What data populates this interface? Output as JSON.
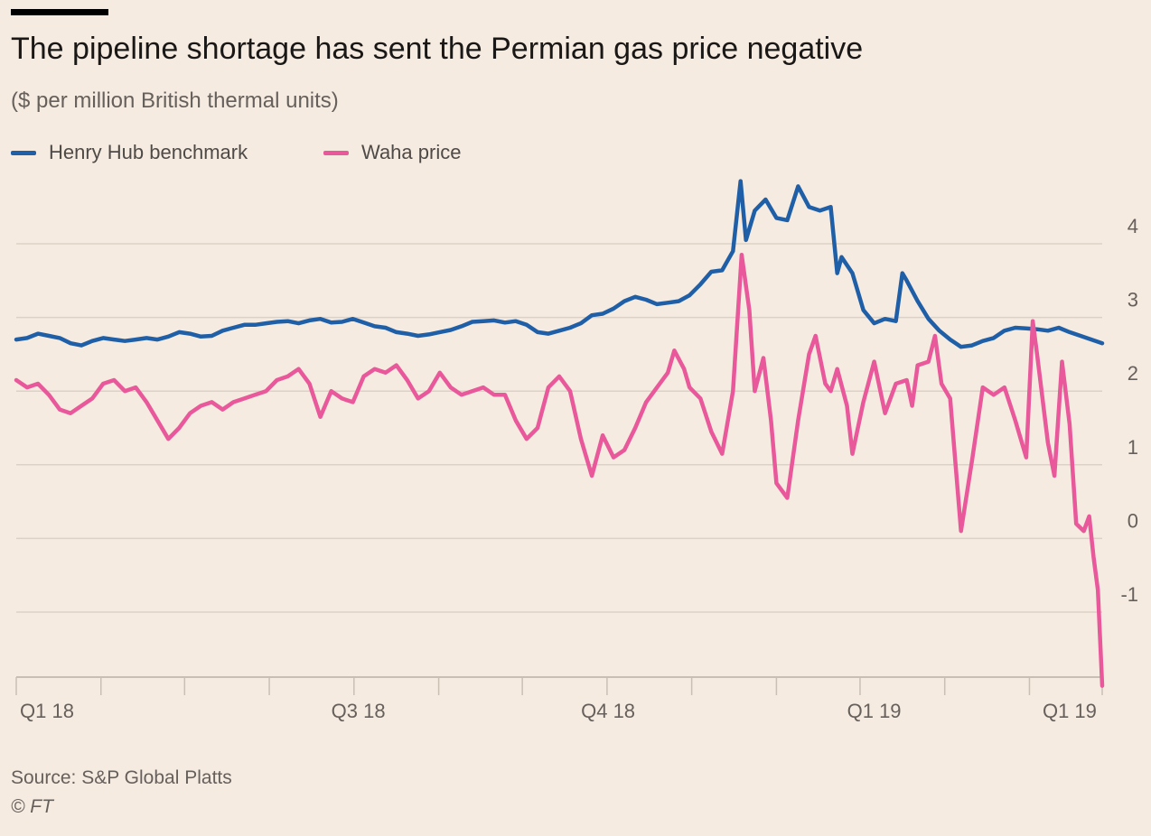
{
  "title": "The pipeline shortage has sent the Permian gas price negative",
  "subtitle": "($ per million British thermal units)",
  "source": "Source: S&P Global Platts",
  "credit": "© FT",
  "colors": {
    "henry": "#1f5fa8",
    "waha": "#e8589a",
    "grid": "#dcd1c6",
    "tick": "#66605c"
  },
  "chart_data": {
    "type": "line",
    "title": "The pipeline shortage has sent the Permian gas price negative",
    "ylabel": "($ per million British thermal units)",
    "xlabel": "",
    "ylim": [
      -2,
      5
    ],
    "yticks": [
      4,
      3,
      2,
      1,
      0,
      -1
    ],
    "xlim": [
      0,
      100
    ],
    "xtick_labels": [
      {
        "x": 0,
        "label": "Q1 18"
      },
      {
        "x": 31.5,
        "label": "Q3 18"
      },
      {
        "x": 54.5,
        "label": "Q4 18"
      },
      {
        "x": 79,
        "label": "Q1 19"
      },
      {
        "x": 97,
        "label": "Q1 19"
      }
    ],
    "minor_ticks": [
      0,
      7.8,
      15.5,
      23.3,
      31.1,
      38.9,
      46.6,
      54.4,
      62.2,
      70,
      77.7,
      85.5,
      93.3,
      100
    ],
    "legend_position": "top-left",
    "series": [
      {
        "name": "Henry Hub benchmark",
        "color": "#1f5fa8",
        "points": [
          [
            0,
            2.7
          ],
          [
            1,
            2.72
          ],
          [
            2,
            2.78
          ],
          [
            3,
            2.75
          ],
          [
            4,
            2.72
          ],
          [
            5,
            2.65
          ],
          [
            6,
            2.62
          ],
          [
            7,
            2.68
          ],
          [
            8,
            2.72
          ],
          [
            9,
            2.7
          ],
          [
            10,
            2.68
          ],
          [
            11,
            2.7
          ],
          [
            12,
            2.72
          ],
          [
            13,
            2.7
          ],
          [
            14,
            2.74
          ],
          [
            15,
            2.8
          ],
          [
            16,
            2.78
          ],
          [
            17,
            2.74
          ],
          [
            18,
            2.75
          ],
          [
            19,
            2.82
          ],
          [
            20,
            2.86
          ],
          [
            21,
            2.9
          ],
          [
            22,
            2.9
          ],
          [
            23,
            2.92
          ],
          [
            24,
            2.94
          ],
          [
            25,
            2.95
          ],
          [
            26,
            2.92
          ],
          [
            27,
            2.96
          ],
          [
            28,
            2.98
          ],
          [
            29,
            2.93
          ],
          [
            30,
            2.94
          ],
          [
            31,
            2.98
          ],
          [
            32,
            2.93
          ],
          [
            33,
            2.88
          ],
          [
            34,
            2.86
          ],
          [
            35,
            2.8
          ],
          [
            36,
            2.78
          ],
          [
            37,
            2.75
          ],
          [
            38,
            2.77
          ],
          [
            39,
            2.8
          ],
          [
            40,
            2.83
          ],
          [
            41,
            2.88
          ],
          [
            42,
            2.94
          ],
          [
            43,
            2.95
          ],
          [
            44,
            2.96
          ],
          [
            45,
            2.93
          ],
          [
            46,
            2.95
          ],
          [
            47,
            2.9
          ],
          [
            48,
            2.8
          ],
          [
            49,
            2.78
          ],
          [
            50,
            2.82
          ],
          [
            51,
            2.86
          ],
          [
            52,
            2.92
          ],
          [
            53,
            3.03
          ],
          [
            54,
            3.05
          ],
          [
            55,
            3.12
          ],
          [
            56,
            3.22
          ],
          [
            57,
            3.28
          ],
          [
            58,
            3.24
          ],
          [
            59,
            3.18
          ],
          [
            60,
            3.2
          ],
          [
            61,
            3.22
          ],
          [
            62,
            3.3
          ],
          [
            63,
            3.45
          ],
          [
            64,
            3.62
          ],
          [
            65,
            3.64
          ],
          [
            66,
            3.9
          ],
          [
            66.7,
            4.85
          ],
          [
            67.2,
            4.05
          ],
          [
            68,
            4.45
          ],
          [
            69,
            4.6
          ],
          [
            70,
            4.35
          ],
          [
            71,
            4.32
          ],
          [
            72,
            4.78
          ],
          [
            73,
            4.5
          ],
          [
            74,
            4.45
          ],
          [
            75,
            4.5
          ],
          [
            75.6,
            3.6
          ],
          [
            76,
            3.82
          ],
          [
            77,
            3.6
          ],
          [
            78,
            3.1
          ],
          [
            79,
            2.92
          ],
          [
            80,
            2.98
          ],
          [
            81,
            2.95
          ],
          [
            81.6,
            3.6
          ],
          [
            82,
            3.5
          ],
          [
            83,
            3.22
          ],
          [
            84,
            2.98
          ],
          [
            85,
            2.82
          ],
          [
            86,
            2.7
          ],
          [
            87,
            2.6
          ],
          [
            88,
            2.62
          ],
          [
            89,
            2.68
          ],
          [
            90,
            2.72
          ],
          [
            91,
            2.82
          ],
          [
            92,
            2.86
          ],
          [
            93,
            2.85
          ],
          [
            94,
            2.84
          ],
          [
            95,
            2.82
          ],
          [
            96,
            2.86
          ],
          [
            97,
            2.8
          ],
          [
            98,
            2.75
          ],
          [
            99,
            2.7
          ],
          [
            100,
            2.65
          ]
        ]
      },
      {
        "name": "Waha price",
        "color": "#e8589a",
        "points": [
          [
            0,
            2.15
          ],
          [
            1,
            2.05
          ],
          [
            2,
            2.1
          ],
          [
            3,
            1.95
          ],
          [
            4,
            1.75
          ],
          [
            5,
            1.7
          ],
          [
            6,
            1.8
          ],
          [
            7,
            1.9
          ],
          [
            8,
            2.1
          ],
          [
            9,
            2.15
          ],
          [
            10,
            2.0
          ],
          [
            11,
            2.05
          ],
          [
            12,
            1.85
          ],
          [
            13,
            1.6
          ],
          [
            14,
            1.35
          ],
          [
            15,
            1.5
          ],
          [
            16,
            1.7
          ],
          [
            17,
            1.8
          ],
          [
            18,
            1.85
          ],
          [
            19,
            1.75
          ],
          [
            20,
            1.85
          ],
          [
            21,
            1.9
          ],
          [
            22,
            1.95
          ],
          [
            23,
            2.0
          ],
          [
            24,
            2.15
          ],
          [
            25,
            2.2
          ],
          [
            26,
            2.3
          ],
          [
            27,
            2.1
          ],
          [
            28,
            1.65
          ],
          [
            29,
            2.0
          ],
          [
            30,
            1.9
          ],
          [
            31,
            1.85
          ],
          [
            32,
            2.2
          ],
          [
            33,
            2.3
          ],
          [
            34,
            2.25
          ],
          [
            35,
            2.35
          ],
          [
            36,
            2.15
          ],
          [
            37,
            1.9
          ],
          [
            38,
            2.0
          ],
          [
            39,
            2.25
          ],
          [
            40,
            2.05
          ],
          [
            41,
            1.95
          ],
          [
            42,
            2.0
          ],
          [
            43,
            2.05
          ],
          [
            44,
            1.95
          ],
          [
            45,
            1.95
          ],
          [
            46,
            1.6
          ],
          [
            47,
            1.35
          ],
          [
            48,
            1.5
          ],
          [
            49,
            2.05
          ],
          [
            50,
            2.2
          ],
          [
            51,
            2.0
          ],
          [
            52,
            1.35
          ],
          [
            53,
            0.85
          ],
          [
            54,
            1.4
          ],
          [
            55,
            1.1
          ],
          [
            56,
            1.2
          ],
          [
            57,
            1.5
          ],
          [
            58,
            1.85
          ],
          [
            59,
            2.05
          ],
          [
            60,
            2.25
          ],
          [
            60.6,
            2.55
          ],
          [
            61.5,
            2.3
          ],
          [
            62,
            2.05
          ],
          [
            63,
            1.9
          ],
          [
            64,
            1.45
          ],
          [
            65,
            1.15
          ],
          [
            66,
            2.0
          ],
          [
            66.8,
            3.85
          ],
          [
            67.5,
            3.1
          ],
          [
            68,
            2.0
          ],
          [
            68.8,
            2.45
          ],
          [
            69.5,
            1.6
          ],
          [
            70,
            0.75
          ],
          [
            71,
            0.55
          ],
          [
            72,
            1.6
          ],
          [
            73,
            2.5
          ],
          [
            73.6,
            2.75
          ],
          [
            74.5,
            2.1
          ],
          [
            75,
            2.0
          ],
          [
            75.6,
            2.3
          ],
          [
            76.5,
            1.8
          ],
          [
            77,
            1.15
          ],
          [
            78,
            1.85
          ],
          [
            79,
            2.4
          ],
          [
            80,
            1.7
          ],
          [
            81,
            2.1
          ],
          [
            82,
            2.15
          ],
          [
            82.5,
            1.8
          ],
          [
            83,
            2.35
          ],
          [
            84,
            2.4
          ],
          [
            84.6,
            2.75
          ],
          [
            85.2,
            2.1
          ],
          [
            86,
            1.9
          ],
          [
            87,
            0.1
          ],
          [
            88,
            1.05
          ],
          [
            89,
            2.05
          ],
          [
            90,
            1.95
          ],
          [
            91,
            2.05
          ],
          [
            92,
            1.6
          ],
          [
            93,
            1.1
          ],
          [
            93.6,
            2.95
          ],
          [
            94,
            2.5
          ],
          [
            95,
            1.3
          ],
          [
            95.6,
            0.85
          ],
          [
            96.3,
            2.4
          ],
          [
            97,
            1.55
          ],
          [
            97.6,
            0.2
          ],
          [
            98.3,
            0.1
          ],
          [
            98.8,
            0.3
          ],
          [
            99.2,
            -0.25
          ],
          [
            99.6,
            -0.7
          ],
          [
            100,
            -2.0
          ]
        ]
      }
    ]
  }
}
